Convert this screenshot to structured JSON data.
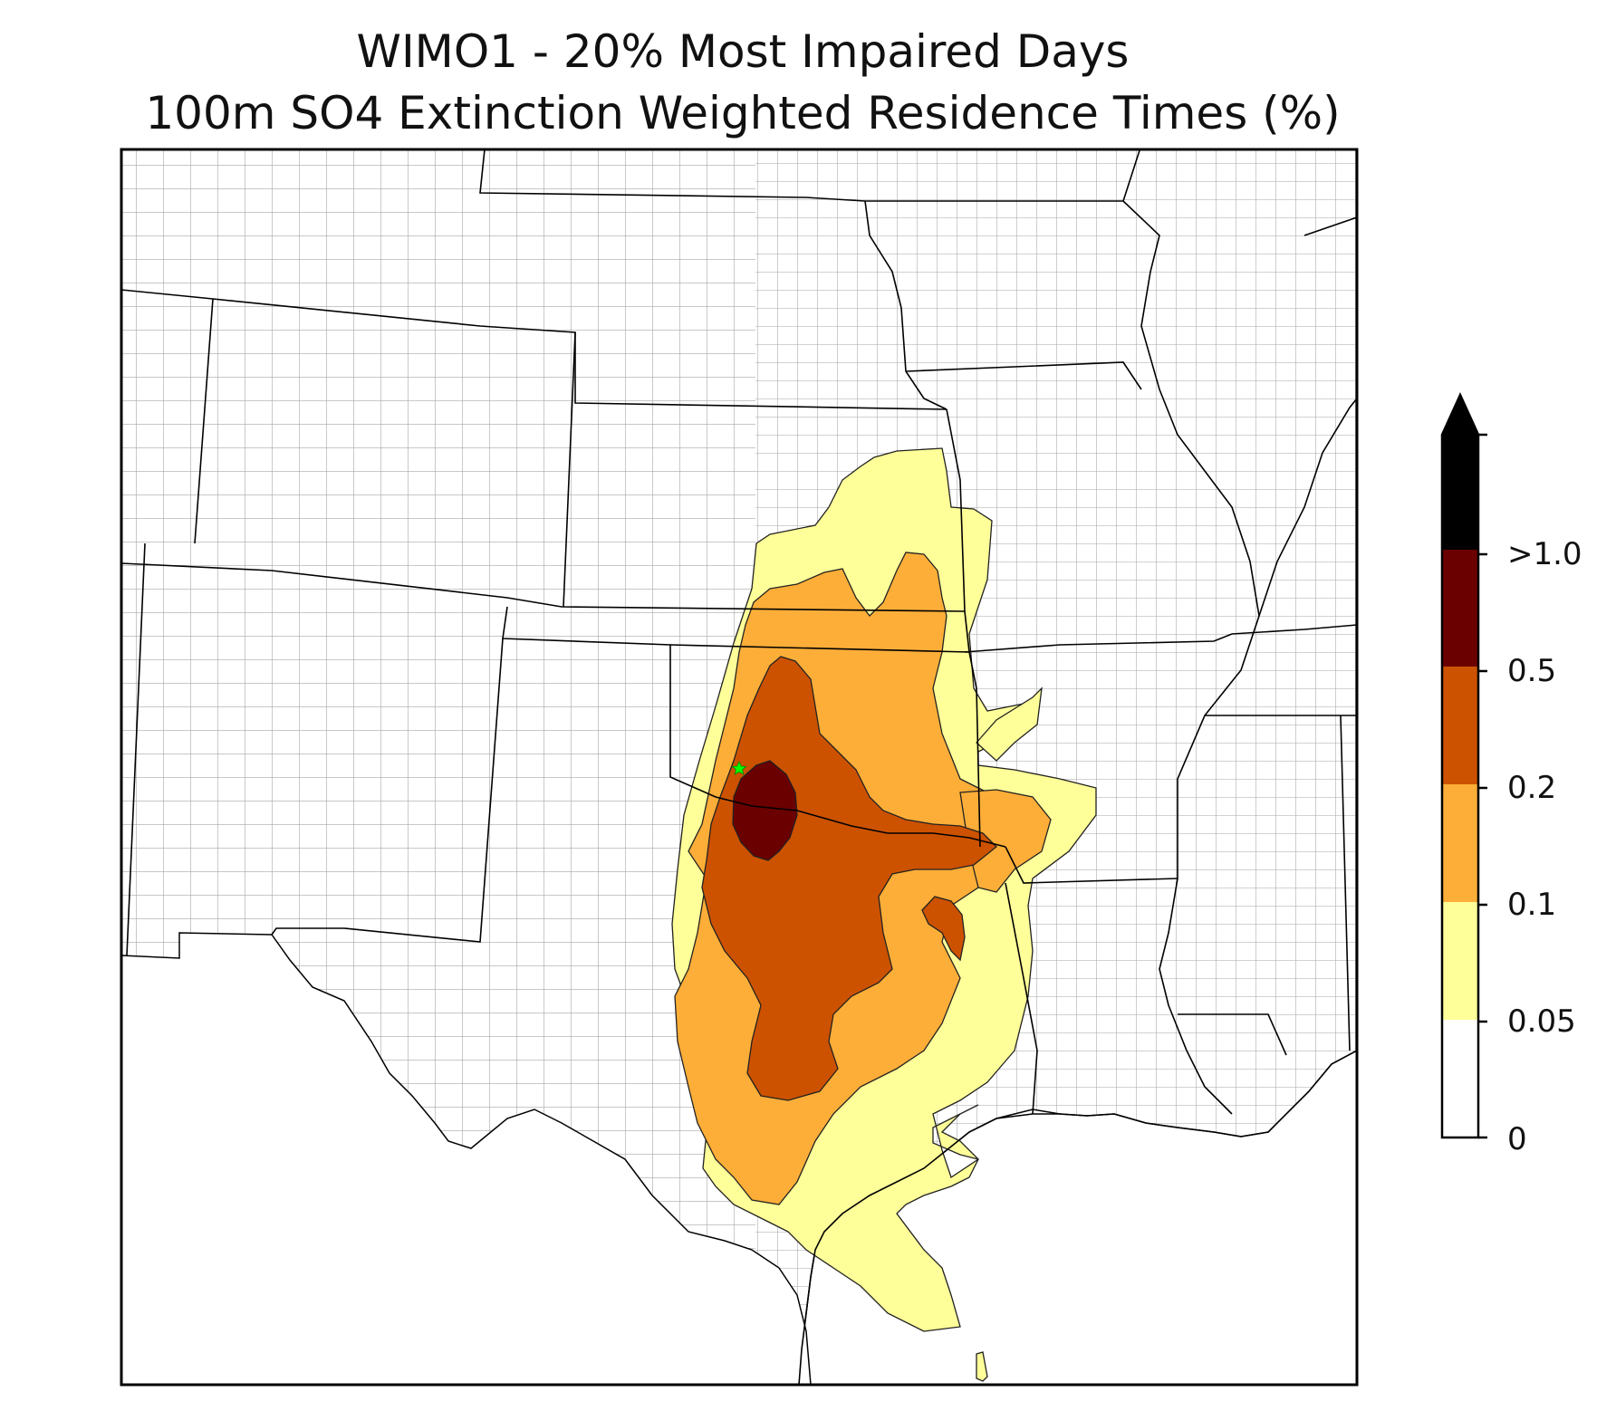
{
  "title_line1": "WIMO1 - 20% Most Impaired Days",
  "title_line2": "100m SO4 Extinction Weighted Residence Times (%)",
  "colorbar": {
    "labels": [
      ">1.0",
      "0.5",
      "0.2",
      "0.1",
      "0.05",
      "0"
    ],
    "bins": [
      {
        "range": "0-0.05",
        "color": "#ffffff"
      },
      {
        "range": "0.05-0.1",
        "color": "#ffff99"
      },
      {
        "range": "0.1-0.2",
        "color": "#fdae38"
      },
      {
        "range": "0.2-0.5",
        "color": "#cc5200"
      },
      {
        "range": "0.5-1.0",
        "color": "#6b0000"
      },
      {
        "range": ">1.0",
        "color": "#000000"
      }
    ],
    "extend": "max"
  },
  "site_marker": {
    "symbol": "star",
    "color": "#00ff00"
  },
  "colors": {
    "county_line": "#a6a6a6",
    "state_line": "#000000",
    "contour_edge": "#222222"
  }
}
